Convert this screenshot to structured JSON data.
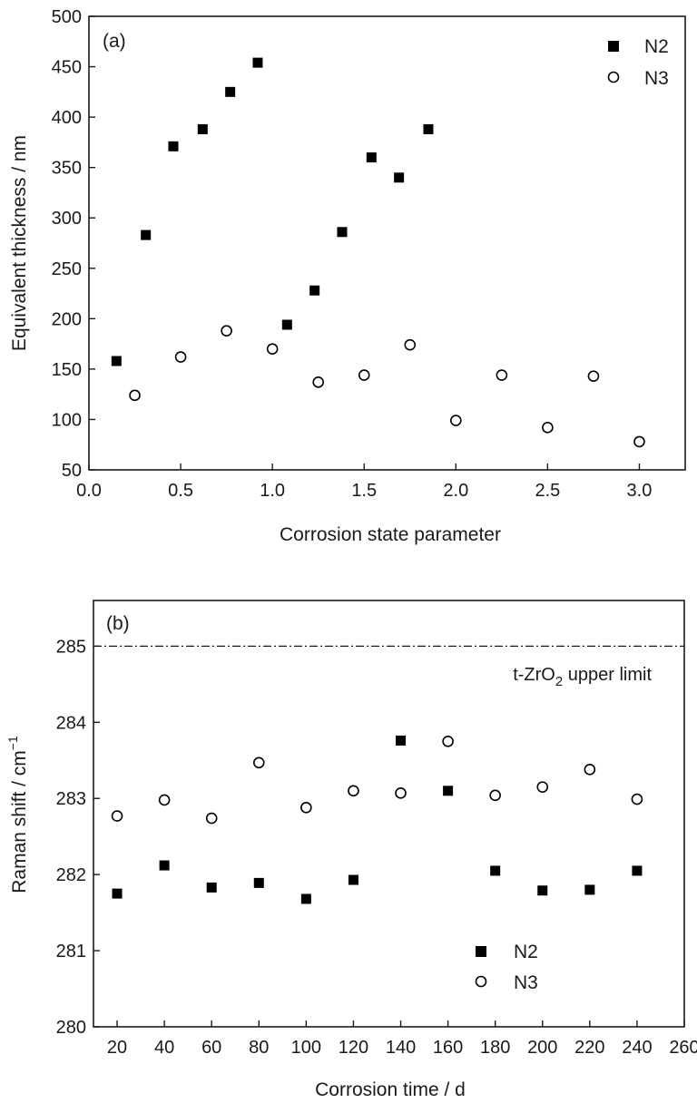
{
  "chart_data": [
    {
      "type": "scatter",
      "panel_label": "(a)",
      "xlabel": "Corrosion state parameter",
      "ylabel": "Equivalent thickness / nm",
      "xlim": [
        0.0,
        3.25
      ],
      "ylim": [
        50,
        500
      ],
      "xticks": [
        0.0,
        0.5,
        1.0,
        1.5,
        2.0,
        2.5,
        3.0
      ],
      "xtick_labels": [
        "0.0",
        "0.5",
        "1.0",
        "1.5",
        "2.0",
        "2.5",
        "3.0"
      ],
      "yticks": [
        50,
        100,
        150,
        200,
        250,
        300,
        350,
        400,
        450,
        500
      ],
      "ytick_labels": [
        "50",
        "100",
        "150",
        "200",
        "250",
        "300",
        "350",
        "400",
        "450",
        "500"
      ],
      "legend_position": "top-right",
      "grid": false,
      "series": [
        {
          "name": "N2",
          "marker": "filled-square",
          "points": [
            [
              0.15,
              158
            ],
            [
              0.31,
              283
            ],
            [
              0.46,
              371
            ],
            [
              0.62,
              388
            ],
            [
              0.77,
              425
            ],
            [
              0.92,
              454
            ],
            [
              1.08,
              194
            ],
            [
              1.23,
              228
            ],
            [
              1.38,
              286
            ],
            [
              1.54,
              360
            ],
            [
              1.69,
              340
            ],
            [
              1.85,
              388
            ]
          ]
        },
        {
          "name": "N3",
          "marker": "open-circle",
          "points": [
            [
              0.25,
              124
            ],
            [
              0.5,
              162
            ],
            [
              0.75,
              188
            ],
            [
              1.0,
              170
            ],
            [
              1.25,
              137
            ],
            [
              1.5,
              144
            ],
            [
              1.75,
              174
            ],
            [
              2.0,
              99
            ],
            [
              2.25,
              144
            ],
            [
              2.5,
              92
            ],
            [
              2.75,
              143
            ],
            [
              3.0,
              78
            ]
          ]
        }
      ]
    },
    {
      "type": "scatter",
      "panel_label": "(b)",
      "xlabel": "Corrosion time / d",
      "ylabel_main": "Raman shift / cm",
      "ylabel_sup": "−1",
      "xlim": [
        10,
        260
      ],
      "ylim": [
        280,
        285.6
      ],
      "xticks": [
        20,
        40,
        60,
        80,
        100,
        120,
        140,
        160,
        180,
        200,
        220,
        240,
        260
      ],
      "xtick_labels": [
        "20",
        "40",
        "60",
        "80",
        "100",
        "120",
        "140",
        "160",
        "180",
        "200",
        "220",
        "240",
        "260"
      ],
      "yticks": [
        280,
        281,
        282,
        283,
        284,
        285
      ],
      "ytick_labels": [
        "280",
        "281",
        "282",
        "283",
        "284",
        "285"
      ],
      "legend_position": "bottom-center",
      "grid": false,
      "reference_line": {
        "y": 285,
        "label_main": "t-ZrO",
        "label_sub": "2",
        "label_rest": " upper limit"
      },
      "series": [
        {
          "name": "N2",
          "marker": "filled-square",
          "points": [
            [
              20,
              281.75
            ],
            [
              40,
              282.12
            ],
            [
              60,
              281.83
            ],
            [
              80,
              281.89
            ],
            [
              100,
              281.68
            ],
            [
              120,
              281.93
            ],
            [
              140,
              283.76
            ],
            [
              160,
              283.1
            ],
            [
              180,
              282.05
            ],
            [
              200,
              281.79
            ],
            [
              220,
              281.8
            ],
            [
              240,
              282.05
            ]
          ]
        },
        {
          "name": "N3",
          "marker": "open-circle",
          "points": [
            [
              20,
              282.77
            ],
            [
              40,
              282.98
            ],
            [
              60,
              282.74
            ],
            [
              80,
              283.47
            ],
            [
              100,
              282.88
            ],
            [
              120,
              283.1
            ],
            [
              140,
              283.07
            ],
            [
              160,
              283.75
            ],
            [
              180,
              283.04
            ],
            [
              200,
              283.15
            ],
            [
              220,
              283.38
            ],
            [
              240,
              282.99
            ]
          ]
        }
      ]
    }
  ]
}
